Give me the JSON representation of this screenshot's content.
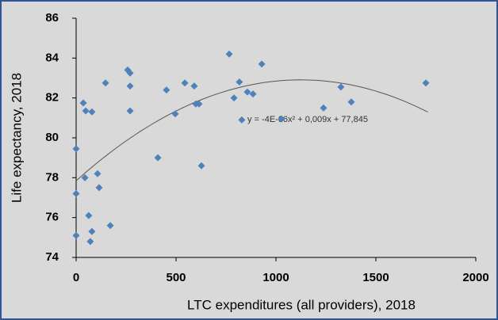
{
  "chart_data": {
    "type": "scatter",
    "x_label": "LTC expenditures (all providers), 2018",
    "y_label": "Life expectancy, 2018",
    "x": [
      0,
      0,
      0,
      36,
      48,
      44,
      79,
      63,
      71,
      79,
      107,
      115,
      171,
      147,
      258,
      270,
      270,
      270,
      409,
      452,
      496,
      544,
      591,
      599,
      615,
      627,
      766,
      790,
      817,
      829,
      857,
      885,
      929,
      1028,
      1238,
      1325,
      1377,
      1750
    ],
    "values": [
      75.1,
      77.2,
      79.45,
      81.75,
      81.35,
      78.0,
      81.3,
      76.1,
      74.8,
      75.3,
      78.2,
      77.5,
      75.6,
      82.75,
      83.4,
      83.25,
      82.6,
      81.35,
      79.0,
      82.4,
      81.2,
      82.75,
      82.6,
      81.7,
      81.7,
      78.6,
      84.2,
      82.0,
      82.8,
      80.9,
      82.3,
      82.2,
      83.7,
      80.95,
      81.5,
      82.55,
      81.8,
      82.75
    ],
    "color": "#4f81bd",
    "trendline": {
      "label": "y = -4E-06x² + 0,009x + 77,845",
      "coefficients": [
        -4e-06,
        0.009,
        77.845
      ],
      "x_range": [
        0,
        1760
      ],
      "color": "#555555"
    },
    "xlim": [
      0,
      2000
    ],
    "xticks": [
      0,
      500,
      1000,
      1500,
      2000
    ],
    "ylim": [
      74,
      86
    ],
    "yticks": [
      74,
      76,
      78,
      80,
      82,
      84,
      86
    ],
    "grid": false
  }
}
